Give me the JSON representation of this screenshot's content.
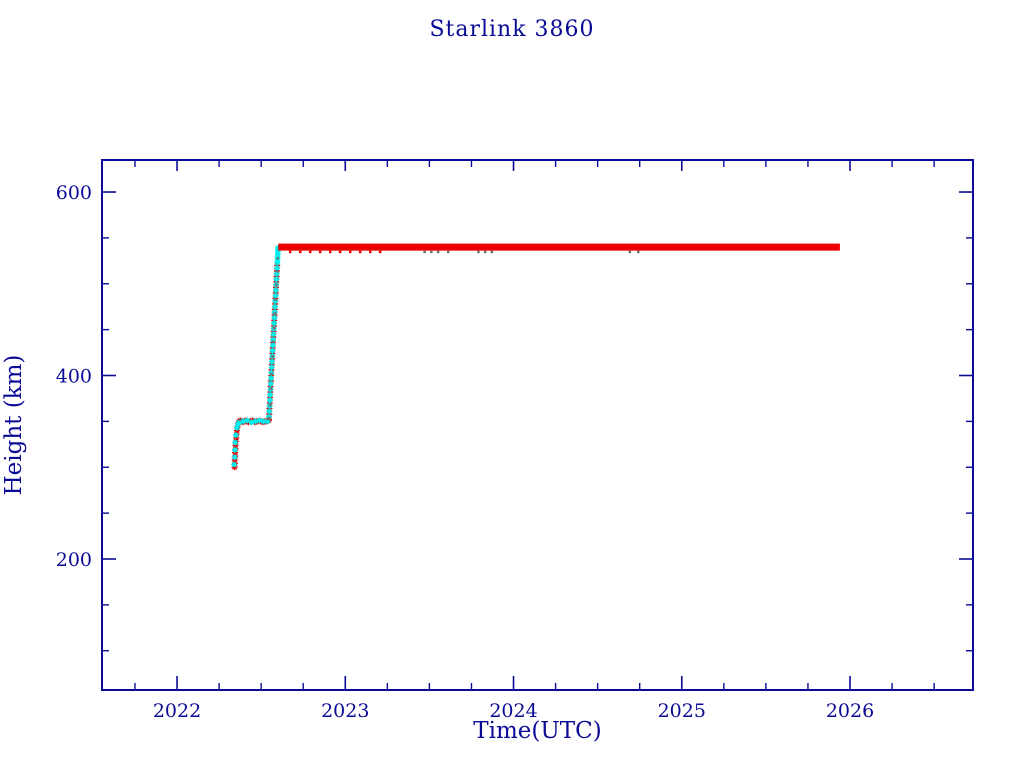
{
  "chart_data": {
    "type": "scatter",
    "title": "Starlink 3860",
    "xlabel": "Time(UTC)",
    "ylabel": "Height (km)",
    "xlim": [
      2021.554,
      2026.731
    ],
    "ylim": [
      57.2,
      634.9
    ],
    "grid": false,
    "legend": "none",
    "axis_color": "#0a0a96",
    "x_major_ticks": [
      {
        "value": 2022,
        "label": "2022"
      },
      {
        "value": 2023,
        "label": "2023"
      },
      {
        "value": 2024,
        "label": "2024"
      },
      {
        "value": 2025,
        "label": "2025"
      },
      {
        "value": 2026,
        "label": "2026"
      }
    ],
    "x_minor_tick_step": 0.25,
    "y_major_ticks": [
      {
        "value": 200,
        "label": "200"
      },
      {
        "value": 400,
        "label": "400"
      },
      {
        "value": 600,
        "label": "600"
      }
    ],
    "y_minor_tick_step": 50,
    "plateau_line": {
      "t_start": 2022.601,
      "t_end": 2025.94,
      "height_km": 540,
      "color": "#ee0000",
      "thickness_px": 7
    },
    "series": [
      {
        "name": "height-red-markers",
        "color": "#ee0000",
        "marker": "asterisk",
        "points": [
          [
            2022.342,
            300
          ],
          [
            2022.344,
            304
          ],
          [
            2022.343,
            308
          ],
          [
            2022.346,
            312
          ],
          [
            2022.345,
            316
          ],
          [
            2022.348,
            320
          ],
          [
            2022.347,
            324
          ],
          [
            2022.35,
            328
          ],
          [
            2022.352,
            332
          ],
          [
            2022.354,
            336
          ],
          [
            2022.356,
            340
          ],
          [
            2022.36,
            344
          ],
          [
            2022.364,
            348
          ],
          [
            2022.368,
            350
          ],
          [
            2022.376,
            351
          ],
          [
            2022.384,
            350
          ],
          [
            2022.392,
            349
          ],
          [
            2022.4,
            350
          ],
          [
            2022.408,
            351
          ],
          [
            2022.416,
            350
          ],
          [
            2022.424,
            349
          ],
          [
            2022.432,
            350
          ],
          [
            2022.44,
            350
          ],
          [
            2022.448,
            351
          ],
          [
            2022.456,
            350
          ],
          [
            2022.464,
            349
          ],
          [
            2022.472,
            350
          ],
          [
            2022.48,
            350
          ],
          [
            2022.488,
            351
          ],
          [
            2022.496,
            350
          ],
          [
            2022.504,
            350
          ],
          [
            2022.512,
            349
          ],
          [
            2022.52,
            350
          ],
          [
            2022.528,
            350
          ],
          [
            2022.536,
            350
          ],
          [
            2022.544,
            351
          ],
          [
            2022.546,
            352
          ],
          [
            2022.546,
            352
          ],
          [
            2022.5478,
            358
          ],
          [
            2022.5495,
            364
          ],
          [
            2022.5513,
            370
          ],
          [
            2022.553,
            376
          ],
          [
            2022.5548,
            382
          ],
          [
            2022.5565,
            388
          ],
          [
            2022.5583,
            394
          ],
          [
            2022.5601,
            400
          ],
          [
            2022.5618,
            406
          ],
          [
            2022.5636,
            412
          ],
          [
            2022.5653,
            418
          ],
          [
            2022.5671,
            424
          ],
          [
            2022.5688,
            430
          ],
          [
            2022.5706,
            436
          ],
          [
            2022.5724,
            442
          ],
          [
            2022.5741,
            448
          ],
          [
            2022.5759,
            454
          ],
          [
            2022.5776,
            460
          ],
          [
            2022.5794,
            466
          ],
          [
            2022.5811,
            472
          ],
          [
            2022.5829,
            478
          ],
          [
            2022.5847,
            484
          ],
          [
            2022.5864,
            490
          ],
          [
            2022.5882,
            496
          ],
          [
            2022.5899,
            502
          ],
          [
            2022.5917,
            508
          ],
          [
            2022.5934,
            514
          ],
          [
            2022.5952,
            520
          ]
        ]
      },
      {
        "name": "height-cyan-markers",
        "color": "#00efef",
        "marker": "asterisk",
        "points": [
          [
            2022.34,
            303
          ],
          [
            2022.342,
            311
          ],
          [
            2022.344,
            319
          ],
          [
            2022.346,
            327
          ],
          [
            2022.35,
            335
          ],
          [
            2022.356,
            343
          ],
          [
            2022.362,
            347
          ],
          [
            2022.37,
            349
          ],
          [
            2022.394,
            350
          ],
          [
            2022.418,
            351
          ],
          [
            2022.442,
            349
          ],
          [
            2022.466,
            350
          ],
          [
            2022.49,
            351
          ],
          [
            2022.514,
            350
          ],
          [
            2022.538,
            350
          ],
          [
            2022.5469,
            355
          ],
          [
            2022.5486,
            361
          ],
          [
            2022.5504,
            367
          ],
          [
            2022.5522,
            373
          ],
          [
            2022.5539,
            379
          ],
          [
            2022.5557,
            385
          ],
          [
            2022.5574,
            391
          ],
          [
            2022.5592,
            397
          ],
          [
            2022.5609,
            403
          ],
          [
            2022.5627,
            409
          ],
          [
            2022.5644,
            415
          ],
          [
            2022.5662,
            421
          ],
          [
            2022.568,
            427
          ],
          [
            2022.5697,
            433
          ],
          [
            2022.5715,
            439
          ],
          [
            2022.5732,
            445
          ],
          [
            2022.575,
            451
          ],
          [
            2022.5767,
            457
          ],
          [
            2022.5785,
            463
          ],
          [
            2022.5802,
            469
          ],
          [
            2022.582,
            475
          ],
          [
            2022.5838,
            481
          ],
          [
            2022.5855,
            487
          ],
          [
            2022.5873,
            493
          ],
          [
            2022.589,
            499
          ],
          [
            2022.5908,
            505
          ],
          [
            2022.5925,
            511
          ],
          [
            2022.5943,
            517
          ],
          [
            2022.596,
            523
          ],
          [
            2022.5969,
            526
          ],
          [
            2022.5978,
            529
          ],
          [
            2022.5987,
            532
          ],
          [
            2022.5996,
            535
          ],
          [
            2022.6005,
            537
          ],
          [
            2022.6005,
            539
          ]
        ]
      },
      {
        "name": "height-gray-markers",
        "color": "#6e6e6e",
        "marker": "dot",
        "points": [
          [
            2022.372,
            352
          ],
          [
            2022.54,
            353
          ],
          [
            2022.547,
            354
          ],
          [
            2022.552,
            368
          ],
          [
            2022.557,
            386
          ],
          [
            2022.561,
            402
          ],
          [
            2022.566,
            421
          ],
          [
            2022.57,
            437
          ],
          [
            2022.575,
            452
          ],
          [
            2022.58,
            468
          ],
          [
            2022.584,
            483
          ],
          [
            2022.589,
            499
          ],
          [
            2022.593,
            514
          ],
          [
            2022.597,
            528
          ],
          [
            2023.47,
            535
          ],
          [
            2023.51,
            535
          ],
          [
            2023.55,
            535
          ],
          [
            2023.61,
            535
          ],
          [
            2023.79,
            535
          ],
          [
            2023.83,
            535
          ],
          [
            2023.87,
            535
          ],
          [
            2024.69,
            535
          ],
          [
            2024.74,
            535
          ]
        ]
      },
      {
        "name": "height-red-speck-markers",
        "color": "#ee0000",
        "marker": "dot",
        "points": [
          [
            2022.671,
            535
          ],
          [
            2022.731,
            535
          ],
          [
            2022.79,
            535
          ],
          [
            2022.849,
            535
          ],
          [
            2022.909,
            535
          ],
          [
            2022.968,
            535
          ],
          [
            2023.028,
            535
          ],
          [
            2023.087,
            535
          ],
          [
            2023.147,
            535
          ],
          [
            2023.206,
            535
          ]
        ]
      }
    ]
  }
}
